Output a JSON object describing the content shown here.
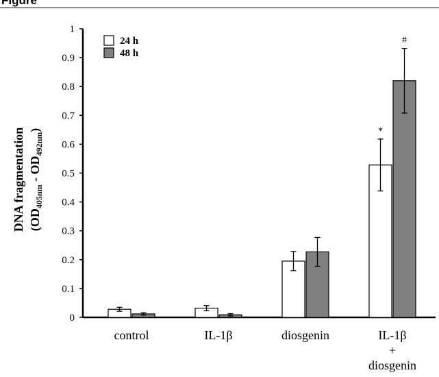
{
  "figure": {
    "label": "Figure"
  },
  "chart_data": {
    "type": "bar",
    "categories": [
      "control",
      "IL-1β",
      "diosgenin",
      "IL-1β\n+\ndiosgenin"
    ],
    "series": [
      {
        "name": "24 h",
        "values": [
          0.028,
          0.032,
          0.195,
          0.528
        ],
        "errors": [
          0.007,
          0.009,
          0.033,
          0.09
        ],
        "color": "#ffffff"
      },
      {
        "name": "48 h",
        "values": [
          0.012,
          0.009,
          0.227,
          0.82
        ],
        "errors": [
          0.004,
          0.004,
          0.05,
          0.112
        ],
        "color": "#808080"
      }
    ],
    "ylim": [
      0,
      1
    ],
    "yticks": [
      "0",
      "0.1",
      "0.2",
      "0.3",
      "0.4",
      "0.5",
      "0.6",
      "0.7",
      "0.8",
      "0.9",
      "1"
    ],
    "ylabel_line1": "DNA fragmentation",
    "ylabel_line2": {
      "prefix": "(OD",
      "sub1": "405nm",
      "mid": " - OD",
      "sub2": "492nm",
      "suffix": ")"
    },
    "annotations": [
      {
        "category": 3,
        "series": 0,
        "text": "*"
      },
      {
        "category": 3,
        "series": 1,
        "text": "#"
      }
    ],
    "legend_position": "top-left"
  }
}
